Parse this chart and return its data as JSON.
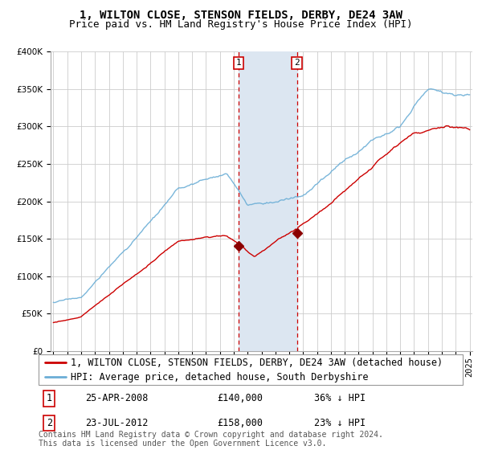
{
  "title": "1, WILTON CLOSE, STENSON FIELDS, DERBY, DE24 3AW",
  "subtitle": "Price paid vs. HM Land Registry's House Price Index (HPI)",
  "legend_line1": "1, WILTON CLOSE, STENSON FIELDS, DERBY, DE24 3AW (detached house)",
  "legend_line2": "HPI: Average price, detached house, South Derbyshire",
  "transaction1_label": "1",
  "transaction1_date": "25-APR-2008",
  "transaction1_price": "£140,000",
  "transaction1_hpi": "36% ↓ HPI",
  "transaction2_label": "2",
  "transaction2_date": "23-JUL-2012",
  "transaction2_price": "£158,000",
  "transaction2_hpi": "23% ↓ HPI",
  "footnote": "Contains HM Land Registry data © Crown copyright and database right 2024.\nThis data is licensed under the Open Government Licence v3.0.",
  "hpi_color": "#6baed6",
  "price_color": "#cc0000",
  "marker_color": "#8b0000",
  "background_color": "#ffffff",
  "plot_bg_color": "#ffffff",
  "grid_color": "#cccccc",
  "highlight_bg": "#dce6f1",
  "ylim": [
    0,
    400000
  ],
  "yticks": [
    0,
    50000,
    100000,
    150000,
    200000,
    250000,
    300000,
    350000,
    400000
  ],
  "year_start": 1995,
  "year_end": 2025,
  "transaction1_year": 2008.33,
  "transaction2_year": 2012.55,
  "title_fontsize": 10,
  "subtitle_fontsize": 9,
  "tick_fontsize": 7.5,
  "legend_fontsize": 8.5,
  "footnote_fontsize": 7
}
